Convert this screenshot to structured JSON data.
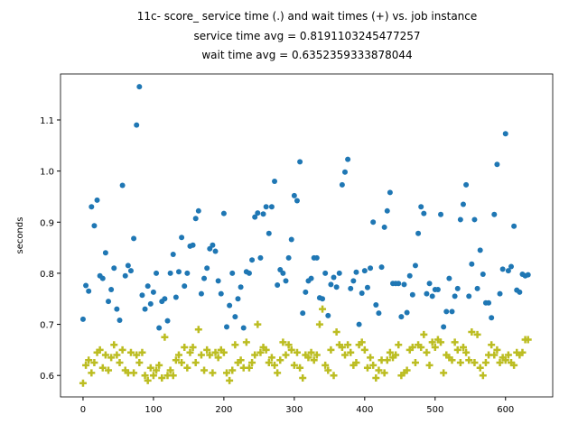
{
  "chart_data": {
    "type": "scatter",
    "title": "11c- score_ service time (.) and wait times (+) vs. job instance",
    "subtitle": [
      "service time avg = 0.8191103245477257",
      "wait time avg = 0.6352359333878044"
    ],
    "y_label": "seconds",
    "x": [
      0,
      4,
      8,
      12,
      16,
      20,
      24,
      28,
      32,
      36,
      40,
      44,
      48,
      52,
      56,
      60,
      64,
      68,
      72,
      76,
      80,
      84,
      88,
      92,
      96,
      100,
      104,
      108,
      112,
      116,
      120,
      124,
      128,
      132,
      136,
      140,
      144,
      148,
      152,
      156,
      160,
      164,
      168,
      172,
      176,
      180,
      184,
      188,
      192,
      196,
      200,
      204,
      208,
      212,
      216,
      220,
      224,
      228,
      232,
      236,
      240,
      244,
      248,
      252,
      256,
      260,
      264,
      268,
      272,
      276,
      280,
      284,
      288,
      292,
      296,
      300,
      304,
      308,
      312,
      316,
      320,
      324,
      328,
      332,
      336,
      340,
      344,
      348,
      352,
      356,
      360,
      364,
      368,
      372,
      376,
      380,
      384,
      388,
      392,
      396,
      400,
      404,
      408,
      412,
      416,
      420,
      424,
      428,
      432,
      436,
      440,
      444,
      448,
      452,
      456,
      460,
      464,
      468,
      472,
      476,
      480,
      484,
      488,
      492,
      496,
      500,
      504,
      508,
      512,
      516,
      520,
      524,
      528,
      532,
      536,
      540,
      544,
      548,
      552,
      556,
      560,
      564,
      568,
      572,
      576,
      580,
      584,
      588,
      592,
      596,
      600,
      604,
      608,
      612,
      616,
      620,
      624,
      628,
      632
    ],
    "series": [
      {
        "name": "service time",
        "marker": "dot",
        "color": "#1f77b4",
        "values": [
          0.71,
          0.776,
          0.765,
          0.93,
          0.893,
          0.943,
          0.795,
          0.79,
          0.84,
          0.745,
          0.768,
          0.81,
          0.73,
          0.708,
          0.972,
          0.795,
          0.815,
          0.805,
          0.868,
          1.09,
          1.165,
          0.757,
          0.73,
          0.775,
          0.74,
          0.763,
          0.8,
          0.693,
          0.745,
          0.75,
          0.707,
          0.8,
          0.837,
          0.753,
          0.803,
          0.87,
          0.775,
          0.8,
          0.853,
          0.855,
          0.907,
          0.922,
          0.76,
          0.79,
          0.81,
          0.848,
          0.855,
          0.843,
          0.785,
          0.76,
          0.917,
          0.695,
          0.737,
          0.8,
          0.715,
          0.75,
          0.773,
          0.693,
          0.803,
          0.8,
          0.826,
          0.91,
          0.918,
          0.83,
          0.916,
          0.93,
          0.878,
          0.93,
          0.98,
          0.777,
          0.807,
          0.8,
          0.785,
          0.83,
          0.866,
          0.952,
          0.942,
          1.018,
          0.722,
          0.763,
          0.785,
          0.79,
          0.83,
          0.83,
          0.752,
          0.75,
          0.8,
          0.717,
          0.778,
          0.792,
          0.773,
          0.8,
          0.973,
          0.998,
          1.023,
          0.77,
          0.785,
          0.802,
          0.7,
          0.761,
          0.805,
          0.772,
          0.81,
          0.9,
          0.738,
          0.722,
          0.812,
          0.89,
          0.922,
          0.958,
          0.78,
          0.78,
          0.78,
          0.715,
          0.778,
          0.723,
          0.795,
          0.758,
          0.815,
          0.878,
          0.93,
          0.917,
          0.76,
          0.78,
          0.755,
          0.768,
          0.768,
          0.915,
          0.695,
          0.725,
          0.79,
          0.725,
          0.755,
          0.77,
          0.905,
          0.935,
          0.973,
          0.755,
          0.818,
          0.905,
          0.77,
          0.845,
          0.798,
          0.742,
          0.742,
          0.713,
          0.915,
          1.013,
          0.76,
          0.808,
          1.073,
          0.805,
          0.813,
          0.892,
          0.767,
          0.763,
          0.798,
          0.795,
          0.797
        ]
      },
      {
        "name": "wait time",
        "marker": "plus",
        "color": "#bcbd22",
        "values": [
          0.585,
          0.62,
          0.63,
          0.605,
          0.625,
          0.645,
          0.65,
          0.615,
          0.64,
          0.61,
          0.635,
          0.66,
          0.64,
          0.625,
          0.65,
          0.61,
          0.605,
          0.645,
          0.605,
          0.64,
          0.625,
          0.645,
          0.6,
          0.59,
          0.615,
          0.6,
          0.61,
          0.62,
          0.595,
          0.675,
          0.6,
          0.61,
          0.6,
          0.63,
          0.64,
          0.625,
          0.655,
          0.615,
          0.645,
          0.655,
          0.625,
          0.69,
          0.64,
          0.61,
          0.65,
          0.64,
          0.605,
          0.645,
          0.635,
          0.65,
          0.645,
          0.605,
          0.59,
          0.61,
          0.66,
          0.625,
          0.63,
          0.615,
          0.665,
          0.615,
          0.625,
          0.64,
          0.7,
          0.645,
          0.655,
          0.65,
          0.625,
          0.635,
          0.62,
          0.605,
          0.63,
          0.665,
          0.64,
          0.66,
          0.65,
          0.62,
          0.645,
          0.615,
          0.595,
          0.64,
          0.635,
          0.645,
          0.63,
          0.64,
          0.7,
          0.73,
          0.62,
          0.61,
          0.65,
          0.6,
          0.685,
          0.66,
          0.655,
          0.64,
          0.66,
          0.645,
          0.62,
          0.625,
          0.66,
          0.665,
          0.65,
          0.615,
          0.635,
          0.62,
          0.595,
          0.61,
          0.63,
          0.605,
          0.63,
          0.645,
          0.635,
          0.64,
          0.66,
          0.6,
          0.605,
          0.61,
          0.65,
          0.655,
          0.625,
          0.66,
          0.655,
          0.68,
          0.645,
          0.62,
          0.665,
          0.655,
          0.67,
          0.665,
          0.605,
          0.64,
          0.635,
          0.63,
          0.665,
          0.65,
          0.625,
          0.655,
          0.645,
          0.63,
          0.685,
          0.625,
          0.68,
          0.615,
          0.6,
          0.625,
          0.64,
          0.66,
          0.64,
          0.65,
          0.625,
          0.635,
          0.63,
          0.64,
          0.625,
          0.62,
          0.645,
          0.64,
          0.645,
          0.67,
          0.67
        ]
      }
    ],
    "xlim": [
      -32,
      667
    ],
    "xticks": [
      0,
      100,
      200,
      300,
      400,
      500,
      600
    ],
    "ylim": [
      0.558,
      1.19
    ],
    "yticks": [
      0.6,
      0.7,
      0.8,
      0.9,
      {
        "value": 1,
        "label": "1.0"
      },
      1.1
    ]
  }
}
